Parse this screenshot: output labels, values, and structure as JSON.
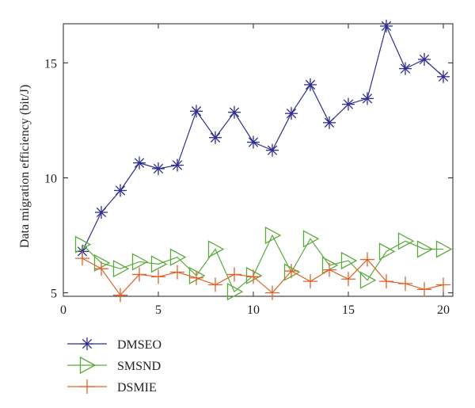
{
  "chart_data": {
    "type": "line",
    "title": "",
    "xlabel": "",
    "ylabel": "Data migration efficiency (bit/J)",
    "xlim": [
      0,
      20.5
    ],
    "ylim": [
      4.85,
      16.7
    ],
    "xticks": [
      0,
      5,
      10,
      15,
      20
    ],
    "yticks": [
      5,
      10,
      15
    ],
    "grid": false,
    "legend_position": "bottom-left, below plot",
    "x": [
      1,
      2,
      3,
      4,
      5,
      6,
      7,
      8,
      9,
      10,
      11,
      12,
      13,
      14,
      15,
      16,
      17,
      18,
      19,
      20
    ],
    "series": [
      {
        "name": "DMSEO",
        "color": "#2e2e8f",
        "marker": "asterisk",
        "values": [
          6.8,
          8.5,
          9.45,
          10.65,
          10.4,
          10.55,
          12.9,
          11.75,
          12.85,
          11.55,
          11.2,
          12.8,
          14.05,
          12.4,
          13.2,
          13.45,
          16.6,
          14.75,
          15.15,
          14.4
        ]
      },
      {
        "name": "SMSND",
        "color": "#5aaa3c",
        "marker": "triangle-right",
        "values": [
          7.1,
          6.3,
          6.05,
          6.35,
          6.25,
          6.55,
          5.75,
          6.9,
          5.05,
          5.75,
          7.5,
          5.9,
          7.35,
          6.2,
          6.4,
          5.55,
          6.8,
          7.25,
          6.9,
          6.9
        ]
      },
      {
        "name": "DSMIE",
        "color": "#e0622a",
        "marker": "plus",
        "values": [
          6.5,
          6.05,
          4.9,
          5.8,
          5.7,
          5.9,
          5.65,
          5.35,
          5.8,
          5.7,
          5.0,
          5.95,
          5.5,
          6.0,
          5.6,
          6.45,
          5.5,
          5.4,
          5.15,
          5.35
        ]
      }
    ]
  }
}
